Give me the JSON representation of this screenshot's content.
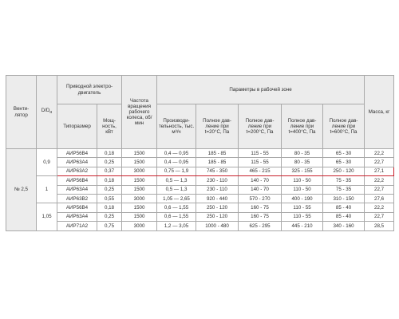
{
  "header": {
    "fan": "Венти- лятор",
    "ratio": "D/D",
    "ratio_sub": "н",
    "motor": "Приводной электро- двигатель",
    "speed": "Частота вращения рабочего колеса, об/мин",
    "params": "Параметры в рабочей зоне",
    "mass": "Масса, кг",
    "frame": "Типоразмер",
    "power": "Мощ- ность, кВт",
    "flow": "Производи- тельность, тыс. м³/ч",
    "p20": "Полное дав- ление при t=20°С, Па",
    "p200": "Полное дав- ление при t=200°С, Па",
    "p400": "Полное дав- ление при t=400°С, Па",
    "p600": "Полное дав- ление при t=600°С, Па"
  },
  "fan_label": "№ 2,5",
  "groups": [
    {
      "ratio": "0,9",
      "rows": [
        {
          "frame": "АИР56В4",
          "power": "0,18",
          "speed": "1500",
          "flow": "0,4 — 0,95",
          "p20": "185 - 85",
          "p200": "115 - 55",
          "p400": "80 - 35",
          "p600": "65 - 30",
          "mass": "22,2"
        },
        {
          "frame": "АИР63А4",
          "power": "0,25",
          "speed": "1500",
          "flow": "0,4 — 0,95",
          "p20": "185 - 85",
          "p200": "115 - 55",
          "p400": "80 - 35",
          "p600": "65 - 30",
          "mass": "22,7"
        },
        {
          "frame": "АИР63А2",
          "power": "0,37",
          "speed": "3000",
          "flow": "0,75 — 1,9",
          "p20": "745 - 350",
          "p200": "465 - 215",
          "p400": "325 - 155",
          "p600": "250 - 120",
          "mass": "27,1"
        }
      ]
    },
    {
      "ratio": "1",
      "rows": [
        {
          "frame": "АИР56В4",
          "power": "0,18",
          "speed": "1500",
          "flow": "0,5 — 1,3",
          "p20": "230 - 110",
          "p200": "140 - 70",
          "p400": "110 - 50",
          "p600": "75 - 35",
          "mass": "22,2"
        },
        {
          "frame": "АИР63А4",
          "power": "0,25",
          "speed": "1500",
          "flow": "0,5 — 1,3",
          "p20": "230 - 110",
          "p200": "140 - 70",
          "p400": "110 - 50",
          "p600": "75 - 35",
          "mass": "22,7"
        },
        {
          "frame": "АИР63В2",
          "power": "0,55",
          "speed": "3000",
          "flow": "1,05 — 2,65",
          "p20": "920 - 440",
          "p200": "570 - 270",
          "p400": "400 - 190",
          "p600": "310 - 150",
          "mass": "27,6"
        }
      ]
    },
    {
      "ratio": "1,05",
      "rows": [
        {
          "frame": "АИР56В4",
          "power": "0,18",
          "speed": "1500",
          "flow": "0,6 — 1,55",
          "p20": "250 - 120",
          "p200": "160 - 75",
          "p400": "110 - 55",
          "p600": "85 - 40",
          "mass": "22,2"
        },
        {
          "frame": "АИР63А4",
          "power": "0,25",
          "speed": "1500",
          "flow": "0,6 — 1,55",
          "p20": "250 - 120",
          "p200": "160 - 75",
          "p400": "110 - 55",
          "p600": "85 - 40",
          "mass": "22,7"
        },
        {
          "frame": "АИР71А2",
          "power": "0,75",
          "speed": "3000",
          "flow": "1,2 — 3,05",
          "p20": "1000 - 480",
          "p200": "625 - 295",
          "p400": "445 - 210",
          "p600": "340 - 160",
          "mass": "28,5"
        }
      ]
    }
  ],
  "highlight": {
    "group": 0,
    "row": 2,
    "color": "#c8212c"
  },
  "colors": {
    "header_bg": "#ececec",
    "border": "#a9a9a9",
    "text": "#2e2e2e"
  }
}
